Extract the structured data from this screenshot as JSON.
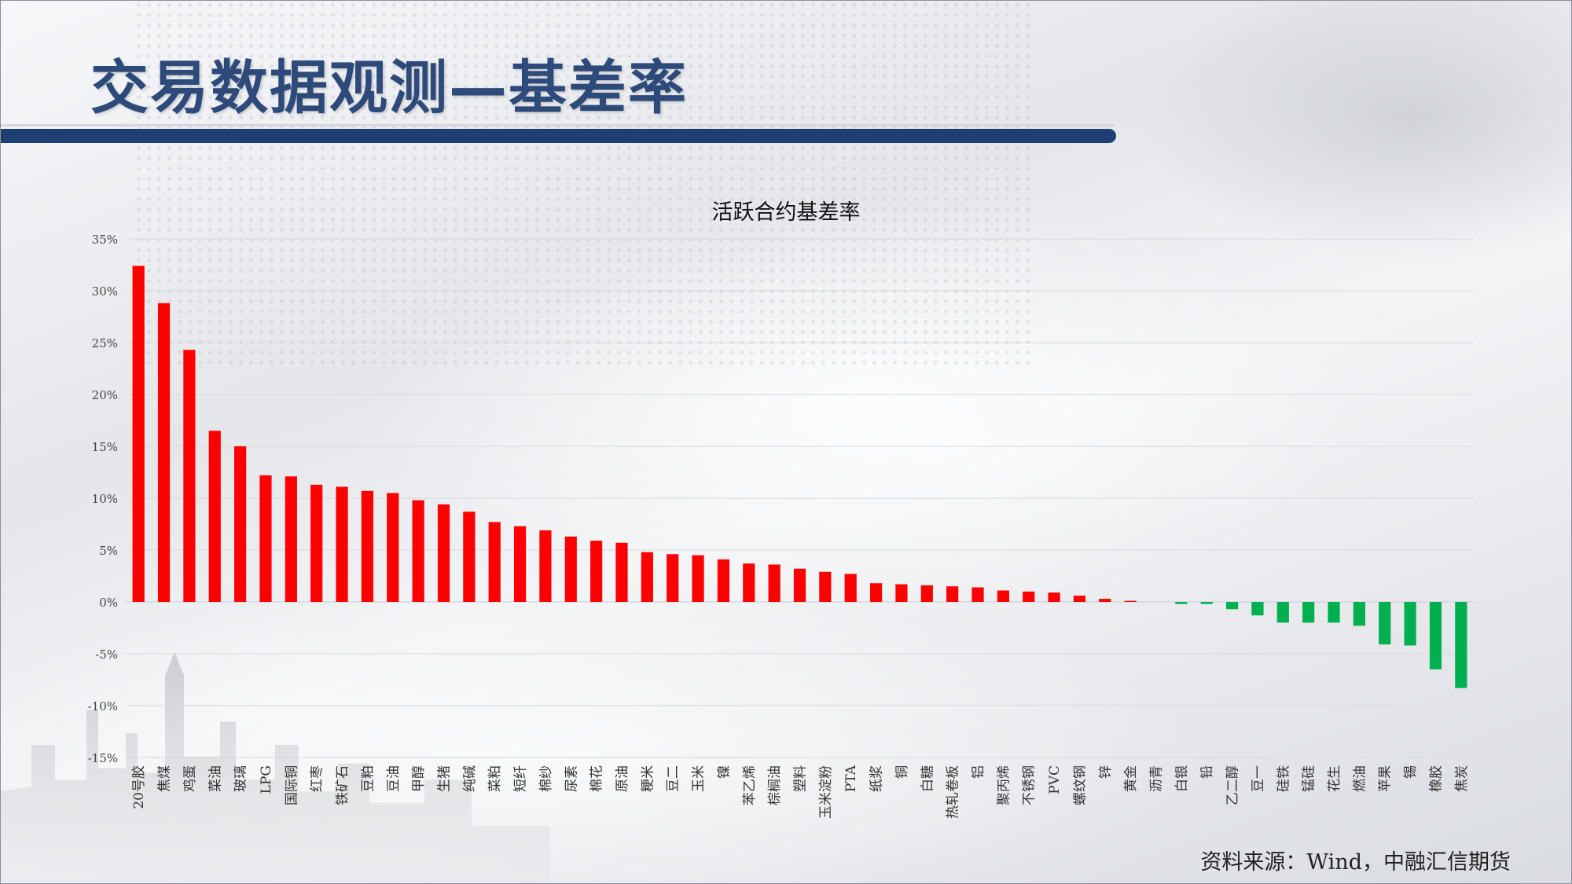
{
  "page": {
    "title": "交易数据观测—基差率",
    "source": "资料来源：Wind，中融汇信期货"
  },
  "colors": {
    "positive": "#ff0000",
    "negative": "#00b050",
    "title_bar": "#1f3f73",
    "title_text": "#2d4a7a"
  },
  "chart_data": {
    "type": "bar",
    "title": "活跃合约基差率",
    "xlabel": "",
    "ylabel": "",
    "ylim": [
      -15,
      35
    ],
    "yticks": [
      35,
      30,
      25,
      20,
      15,
      10,
      5,
      0,
      -5,
      -10,
      -15
    ],
    "ytick_labels": [
      "35%",
      "30%",
      "25%",
      "20%",
      "15%",
      "10%",
      "5%",
      "0%",
      "-5%",
      "-10%",
      "-15%"
    ],
    "grid": true,
    "legend": "none",
    "categories": [
      "20号胶",
      "焦煤",
      "鸡蛋",
      "菜油",
      "玻璃",
      "LPG",
      "国际铜",
      "红枣",
      "铁矿石",
      "豆粕",
      "豆油",
      "甲醇",
      "生猪",
      "纯碱",
      "菜粕",
      "短纤",
      "棉纱",
      "尿素",
      "棉花",
      "原油",
      "粳米",
      "豆二",
      "玉米",
      "镍",
      "苯乙烯",
      "棕榈油",
      "塑料",
      "玉米淀粉",
      "PTA",
      "纸浆",
      "铜",
      "白糖",
      "热轧卷板",
      "铝",
      "聚丙烯",
      "不锈钢",
      "PVC",
      "螺纹钢",
      "锌",
      "黄金",
      "沥青",
      "白银",
      "铅",
      "乙二醇",
      "豆一",
      "硅铁",
      "锰硅",
      "花生",
      "燃油",
      "苹果",
      "锡",
      "橡胶",
      "焦炭"
    ],
    "values": [
      32.4,
      28.8,
      24.3,
      16.5,
      15.0,
      12.2,
      12.1,
      11.3,
      11.1,
      10.7,
      10.5,
      9.8,
      9.4,
      8.7,
      7.7,
      7.3,
      6.9,
      6.3,
      5.9,
      5.7,
      4.8,
      4.6,
      4.5,
      4.1,
      3.7,
      3.6,
      3.2,
      2.9,
      2.7,
      1.8,
      1.7,
      1.6,
      1.5,
      1.4,
      1.1,
      1.0,
      0.9,
      0.6,
      0.3,
      0.1,
      0.0,
      -0.2,
      -0.2,
      -0.7,
      -1.3,
      -2.0,
      -2.0,
      -2.0,
      -2.3,
      -4.1,
      -4.2,
      -6.5,
      -8.3
    ]
  }
}
